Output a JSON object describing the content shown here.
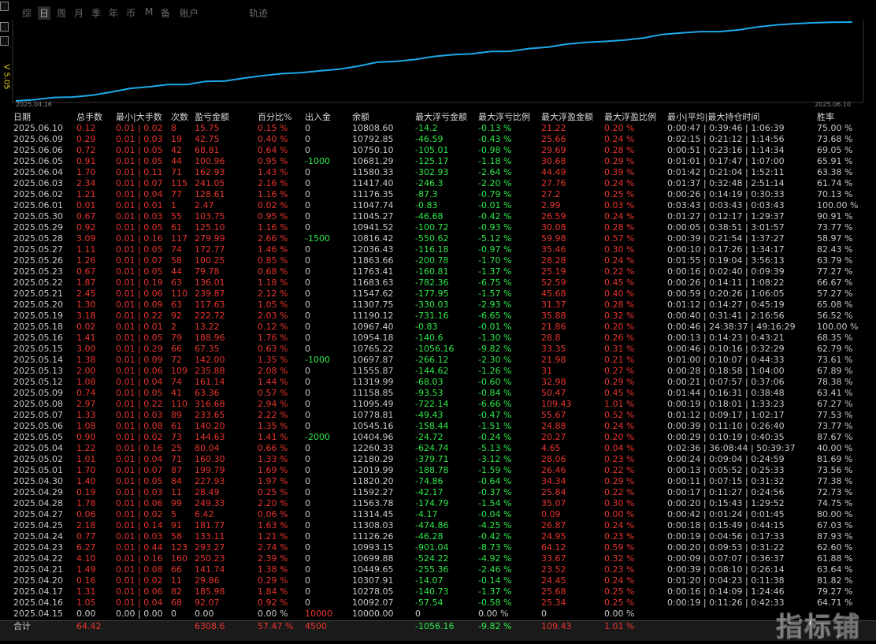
{
  "toolbar": {
    "tabs": [
      "综",
      "日",
      "周",
      "月",
      "季",
      "年",
      "币",
      "M",
      "备",
      "账户",
      "轨迹"
    ],
    "version": "V 5.05"
  },
  "curve": {
    "start_label": "2025.04.16",
    "end_label": "2025.06.10"
  },
  "table": {
    "header": [
      "日期",
      "总手数",
      "最小|大手数",
      "次数",
      "盈亏金额",
      "百分比%",
      "出入金",
      "余额",
      "最大浮亏金额",
      "最大浮亏比例",
      "最大浮盈金额",
      "最大浮盈比例",
      "最小|平均|最大持仓时间",
      "胜率"
    ],
    "rows": [
      [
        "2025.06.10",
        "0.12",
        "0.01 | 0.02",
        "8",
        "15.75",
        "0.15 %",
        "0",
        "10808.60",
        "-14.2",
        "-0.13 %",
        "21.22",
        "0.20 %",
        "0:00:47 | 0:39:46 | 1:06:39",
        "75.00 %"
      ],
      [
        "2025.06.09",
        "0.29",
        "0.01 | 0.03",
        "19",
        "42.75",
        "0.40 %",
        "0",
        "10792.85",
        "-46.59",
        "-0.43 %",
        "25.66",
        "0.24 %",
        "0:02:15 | 0:21:12 | 1:14:56",
        "73.68 %"
      ],
      [
        "2025.06.06",
        "0.72",
        "0.01 | 0.05",
        "42",
        "68.81",
        "0.64 %",
        "0",
        "10750.10",
        "-105.01",
        "-0.98 %",
        "29.69",
        "0.28 %",
        "0:00:51 | 0:23:16 | 1:14:34",
        "69.05 %"
      ],
      [
        "2025.06.05",
        "0.91",
        "0.01 | 0.05",
        "44",
        "100.96",
        "0.95 %",
        "-1000",
        "10681.29",
        "-125.17",
        "-1.18 %",
        "30.68",
        "0.29 %",
        "0:01:01 | 0:17:47 | 1:07:00",
        "65.91 %"
      ],
      [
        "2025.06.04",
        "1.70",
        "0.01 | 0.11",
        "71",
        "162.93",
        "1.43 %",
        "0",
        "11580.33",
        "-302.93",
        "-2.64 %",
        "44.49",
        "0.39 %",
        "0:01:42 | 0:21:04 | 1:52:11",
        "63.38 %"
      ],
      [
        "2025.06.03",
        "2.34",
        "0.01 | 0.07",
        "115",
        "241.05",
        "2.16 %",
        "0",
        "11417.40",
        "-246.3",
        "-2.20 %",
        "27.76",
        "0.24 %",
        "0:01:37 | 0:32:48 | 2:51:14",
        "61.74 %"
      ],
      [
        "2025.06.02",
        "1.21",
        "0.01 | 0.04",
        "77",
        "128.61",
        "1.16 %",
        "0",
        "11176.35",
        "-87.3",
        "-0.79 %",
        "27.2",
        "0.25 %",
        "0:00:26 | 0:14:19 | 0:30:33",
        "70.13 %"
      ],
      [
        "2025.06.01",
        "0.01",
        "0.01 | 0.01",
        "1",
        "2.47",
        "0.02 %",
        "0",
        "11047.74",
        "-0.83",
        "-0.01 %",
        "2.99",
        "0.03 %",
        "0:03:43 | 0:03:43 | 0:03:43",
        "100.00 %"
      ],
      [
        "2025.05.30",
        "0.67",
        "0.01 | 0.03",
        "55",
        "103.75",
        "0.95 %",
        "0",
        "11045.27",
        "-46.68",
        "-0.42 %",
        "26.59",
        "0.24 %",
        "0:01:27 | 0:12:17 | 1:29:37",
        "90.91 %"
      ],
      [
        "2025.05.29",
        "0.92",
        "0.01 | 0.05",
        "61",
        "125.10",
        "1.16 %",
        "0",
        "10941.52",
        "-100.72",
        "-0.93 %",
        "30.08",
        "0.28 %",
        "0:00:05 | 0:38:51 | 3:01:57",
        "73.77 %"
      ],
      [
        "2025.05.28",
        "3.09",
        "0.01 | 0.16",
        "117",
        "279.99",
        "2.66 %",
        "-1500",
        "10816.42",
        "-550.62",
        "-5.12 %",
        "59.98",
        "0.57 %",
        "0:00:39 | 0:21:54 | 1:37:27",
        "58.97 %"
      ],
      [
        "2025.05.27",
        "1.11",
        "0.01 | 0.05",
        "74",
        "172.77",
        "1.46 %",
        "0",
        "12036.43",
        "-116.18",
        "-0.97 %",
        "35.46",
        "0.30 %",
        "0:00:10 | 0:17:26 | 1:34:17",
        "82.43 %"
      ],
      [
        "2025.05.26",
        "1.26",
        "0.01 | 0.07",
        "58",
        "100.25",
        "0.85 %",
        "0",
        "11863.66",
        "-200.78",
        "-1.70 %",
        "28.28",
        "0.24 %",
        "0:01:55 | 0:19:04 | 3:56:13",
        "63.79 %"
      ],
      [
        "2025.05.23",
        "0.67",
        "0.01 | 0.05",
        "44",
        "79.78",
        "0.68 %",
        "0",
        "11763.41",
        "-160.81",
        "-1.37 %",
        "25.19",
        "0.22 %",
        "0:00:16 | 0:02:40 | 0:09:39",
        "77.27 %"
      ],
      [
        "2025.05.22",
        "1.87",
        "0.01 | 0.19",
        "63",
        "136.01",
        "1.18 %",
        "0",
        "11683.63",
        "-782.36",
        "-6.75 %",
        "52.59",
        "0.45 %",
        "0:00:26 | 0:14:11 | 1:08:22",
        "66.67 %"
      ],
      [
        "2025.05.21",
        "2.45",
        "0.01 | 0.06",
        "110",
        "239.87",
        "2.12 %",
        "0",
        "11547.62",
        "-177.95",
        "-1.57 %",
        "45.68",
        "0.40 %",
        "0:00:59 | 0:20:26 | 1:06:05",
        "57.27 %"
      ],
      [
        "2025.05.20",
        "1.30",
        "0.01 | 0.09",
        "63",
        "117.63",
        "1.05 %",
        "0",
        "11307.75",
        "-330.03",
        "-2.93 %",
        "31.37",
        "0.28 %",
        "0:01:12 | 0:14:27 | 0:45:19",
        "65.08 %"
      ],
      [
        "2025.05.19",
        "3.18",
        "0.01 | 0.22",
        "92",
        "222.72",
        "2.03 %",
        "0",
        "11190.12",
        "-731.16",
        "-6.65 %",
        "35.88",
        "0.32 %",
        "0:00:40 | 0:31:41 | 2:16:56",
        "56.52 %"
      ],
      [
        "2025.05.18",
        "0.02",
        "0.01 | 0.01",
        "2",
        "13.22",
        "0.12 %",
        "0",
        "10967.40",
        "-0.83",
        "-0.01 %",
        "21.86",
        "0.20 %",
        "0:00:46 | 24:38:37 | 49:16:29",
        "100.00 %"
      ],
      [
        "2025.05.16",
        "1.41",
        "0.01 | 0.05",
        "79",
        "188.96",
        "1.76 %",
        "0",
        "10954.18",
        "-140.6",
        "-1.30 %",
        "28.8",
        "0.26 %",
        "0:00:13 | 0:14:23 | 0:43:21",
        "68.35 %"
      ],
      [
        "2025.05.15",
        "3.00",
        "0.01 | 0.29",
        "66",
        "67.35",
        "0.63 %",
        "0",
        "10765.22",
        "-1056.16",
        "-9.82 %",
        "33.35",
        "0.31 %",
        "0:00:46 | 0:10:16 | 0:32:29",
        "62.79 %"
      ],
      [
        "2025.05.14",
        "1.38",
        "0.01 | 0.09",
        "72",
        "142.00",
        "1.35 %",
        "-1000",
        "10697.87",
        "-266.12",
        "-2.30 %",
        "21.98",
        "0.21 %",
        "0:01:00 | 0:10:07 | 0:44:33",
        "73.61 %"
      ],
      [
        "2025.05.13",
        "2.00",
        "0.01 | 0.06",
        "109",
        "235.88",
        "2.08 %",
        "0",
        "11555.87",
        "-144.62",
        "-1.26 %",
        "31",
        "0.27 %",
        "0:00:28 | 0:18:58 | 1:04:00",
        "67.89 %"
      ],
      [
        "2025.05.12",
        "1.08",
        "0.01 | 0.04",
        "74",
        "161.14",
        "1.44 %",
        "0",
        "11319.99",
        "-68.03",
        "-0.60 %",
        "32.98",
        "0.29 %",
        "0:00:21 | 0:07:57 | 0:37:06",
        "78.38 %"
      ],
      [
        "2025.05.09",
        "0.74",
        "0.01 | 0.05",
        "41",
        "63.36",
        "0.57 %",
        "0",
        "11158.85",
        "-93.53",
        "-0.84 %",
        "50.47",
        "0.45 %",
        "0:01:44 | 0:16:31 | 0:38:48",
        "63.41 %"
      ],
      [
        "2025.05.08",
        "2.97",
        "0.01 | 0.22",
        "110",
        "316.68",
        "2.94 %",
        "0",
        "11095.49",
        "-722.14",
        "-6.66 %",
        "109.43",
        "1.01 %",
        "0:00:19 | 0:18:01 | 1:33:23",
        "67.27 %"
      ],
      [
        "2025.05.07",
        "1.33",
        "0.01 | 0.03",
        "89",
        "233.65",
        "2.22 %",
        "0",
        "10778.81",
        "-49.43",
        "-0.47 %",
        "55.67",
        "0.52 %",
        "0:01:12 | 0:09:17 | 1:02:17",
        "77.53 %"
      ],
      [
        "2025.05.06",
        "1.08",
        "0.01 | 0.08",
        "61",
        "140.20",
        "1.35 %",
        "0",
        "10545.16",
        "-158.44",
        "-1.51 %",
        "24.88",
        "0.24 %",
        "0:00:39 | 0:11:10 | 0:26:40",
        "73.77 %"
      ],
      [
        "2025.05.05",
        "0.90",
        "0.01 | 0.02",
        "73",
        "144.63",
        "1.41 %",
        "-2000",
        "10404.96",
        "-24.72",
        "-0.24 %",
        "20.27",
        "0.20 %",
        "0:00:29 | 0:10:19 | 0:40:35",
        "87.67 %"
      ],
      [
        "2025.05.04",
        "1.22",
        "0.01 | 0.16",
        "25",
        "80.04",
        "0.66 %",
        "0",
        "12260.33",
        "-624.74",
        "-5.13 %",
        "4.65",
        "0.04 %",
        "0:02:36 | 36:08:44 | 50:39:37",
        "40.00 %"
      ],
      [
        "2025.05.02",
        "1.01",
        "0.01 | 0.04",
        "71",
        "160.30",
        "1.33 %",
        "0",
        "12180.29",
        "-379.71",
        "-3.12 %",
        "28.06",
        "0.23 %",
        "0:00:24 | 0:09:04 | 0:24:59",
        "81.69 %"
      ],
      [
        "2025.05.01",
        "1.70",
        "0.01 | 0.07",
        "87",
        "199.79",
        "1.69 %",
        "0",
        "12019.99",
        "-188.78",
        "-1.59 %",
        "26.46",
        "0.22 %",
        "0:00:13 | 0:05:52 | 0:25:33",
        "73.56 %"
      ],
      [
        "2025.04.30",
        "1.40",
        "0.01 | 0.05",
        "84",
        "227.93",
        "1.97 %",
        "0",
        "11820.20",
        "-74.86",
        "-0.64 %",
        "34.34",
        "0.29 %",
        "0:00:11 | 0:07:15 | 0:31:32",
        "77.38 %"
      ],
      [
        "2025.04.29",
        "0.19",
        "0.01 | 0.03",
        "11",
        "28.49",
        "0.25 %",
        "0",
        "11592.27",
        "-42.17",
        "-0.37 %",
        "25.84",
        "0.22 %",
        "0:00:17 | 0:11:27 | 0:24:56",
        "72.73 %"
      ],
      [
        "2025.04.28",
        "1.78",
        "0.01 | 0.06",
        "99",
        "249.33",
        "2.20 %",
        "0",
        "11563.78",
        "-174.79",
        "-1.54 %",
        "35.07",
        "0.30 %",
        "0:00:20 | 0:15:43 | 1:29:52",
        "74.75 %"
      ],
      [
        "2025.04.27",
        "0.06",
        "0.01 | 0.02",
        "5",
        "6.42",
        "0.06 %",
        "0",
        "11314.45",
        "-4.17",
        "-0.04 %",
        "0.09",
        "0.00 %",
        "0:00:42 | 0:01:24 | 0:01:45",
        "80.00 %"
      ],
      [
        "2025.04.25",
        "2.18",
        "0.01 | 0.14",
        "91",
        "181.77",
        "1.63 %",
        "0",
        "11308.03",
        "-474.86",
        "-4.25 %",
        "26.87",
        "0.24 %",
        "0:00:18 | 0:15:49 | 0:44:15",
        "67.03 %"
      ],
      [
        "2025.04.24",
        "0.77",
        "0.01 | 0.03",
        "58",
        "133.11",
        "1.21 %",
        "0",
        "11126.26",
        "-46.28",
        "-0.42 %",
        "24.95",
        "0.23 %",
        "0:00:19 | 0:04:56 | 0:17:33",
        "87.93 %"
      ],
      [
        "2025.04.23",
        "6.27",
        "0.01 | 0.44",
        "123",
        "293.27",
        "2.74 %",
        "0",
        "10993.15",
        "-901.04",
        "-8.73 %",
        "64.12",
        "0.59 %",
        "0:00:20 | 0:09:53 | 0:31:22",
        "62.60 %"
      ],
      [
        "2025.04.22",
        "4.10",
        "0.01 | 0.16",
        "160",
        "250.23",
        "2.39 %",
        "0",
        "10699.88",
        "-524.22",
        "-4.92 %",
        "33.67",
        "0.32 %",
        "0:00:09 | 0:07:07 | 0:36:37",
        "61.88 %"
      ],
      [
        "2025.04.21",
        "1.49",
        "0.01 | 0.08",
        "66",
        "141.74",
        "1.38 %",
        "0",
        "10449.65",
        "-255.36",
        "-2.46 %",
        "23.52",
        "0.23 %",
        "0:00:39 | 0:08:10 | 0:26:14",
        "63.64 %"
      ],
      [
        "2025.04.20",
        "0.16",
        "0.01 | 0.02",
        "11",
        "29.86",
        "0.29 %",
        "0",
        "10307.91",
        "-14.07",
        "-0.14 %",
        "24.45",
        "0.24 %",
        "0:01:20 | 0:04:23 | 0:11:38",
        "81.82 %"
      ],
      [
        "2025.04.17",
        "1.31",
        "0.01 | 0.06",
        "82",
        "185.98",
        "1.84 %",
        "0",
        "10278.05",
        "-140.73",
        "-1.37 %",
        "25.68",
        "0.25 %",
        "0:00:16 | 0:14:09 | 1:24:46",
        "79.27 %"
      ],
      [
        "2025.04.16",
        "1.05",
        "0.01 | 0.04",
        "68",
        "92.07",
        "0.92 %",
        "0",
        "10092.07",
        "-57.54",
        "-0.58 %",
        "25.34",
        "0.25 %",
        "0:00:19 | 0:11:26 | 0:42:33",
        "64.71 %"
      ],
      [
        "2025.04.15",
        "0.00",
        "0.00 | 0.00",
        "0",
        "0.00",
        "0.00 %",
        "10000",
        "10000.00",
        "0",
        "0.00 %",
        "0",
        "0.00 %",
        null,
        null
      ]
    ],
    "total": [
      "合计",
      "64.42",
      null,
      null,
      "6308.6",
      "57.47 %",
      "4500",
      null,
      "-1056.16",
      "-9.82 %",
      "109.43",
      "1.01 %",
      null,
      null
    ]
  },
  "watermark": "指标铺"
}
